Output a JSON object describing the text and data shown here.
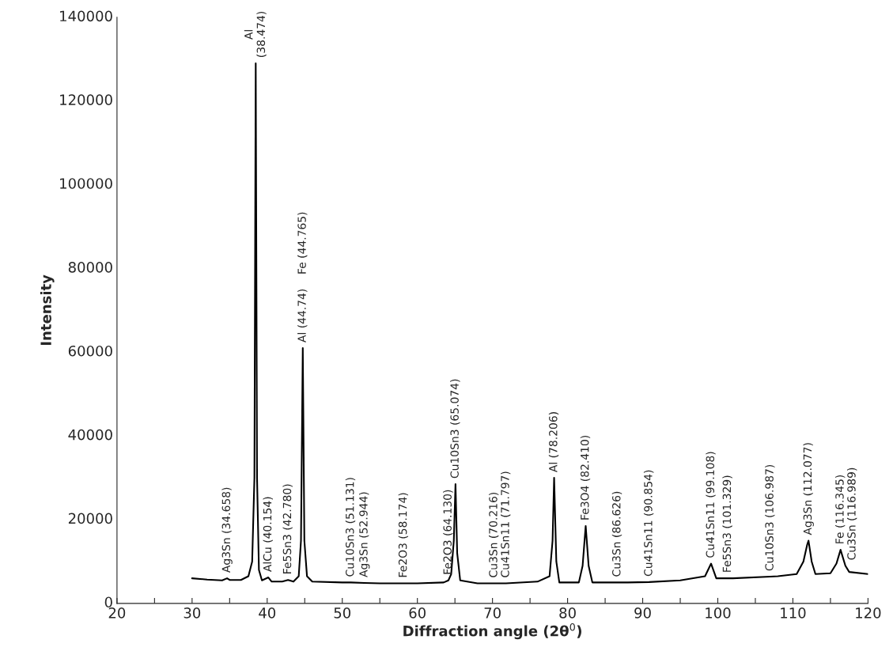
{
  "chart_data": {
    "type": "line",
    "xlabel": "Diffraction angle (2θ$^{0}$)",
    "ylabel": "Intensity",
    "xlim": [
      20,
      120
    ],
    "ylim": [
      0,
      140000
    ],
    "xticks": [
      20,
      {
        "value": 25,
        "label": null
      },
      30,
      {
        "value": 35,
        "label": null
      },
      40,
      {
        "value": 45,
        "label": null
      },
      50,
      {
        "value": 55,
        "label": null
      },
      60,
      {
        "value": 65,
        "label": null
      },
      70,
      {
        "value": 75,
        "label": null
      },
      80,
      {
        "value": 85,
        "label": null
      },
      90,
      {
        "value": 95,
        "label": null
      },
      100,
      {
        "value": 105,
        "label": null
      },
      110,
      {
        "value": 115,
        "label": null
      },
      120
    ],
    "yticks": [
      0,
      20000,
      40000,
      60000,
      80000,
      100000,
      120000,
      140000
    ],
    "series": [
      {
        "color": "#000000",
        "x": [
          30,
          32,
          34,
          34.658,
          35,
          36.5,
          37.5,
          38.0,
          38.3,
          38.474,
          38.65,
          38.9,
          39.3,
          40.154,
          40.6,
          42,
          42.78,
          43.5,
          44.2,
          44.5,
          44.74,
          44.95,
          45.3,
          46,
          50,
          51.131,
          52.944,
          55,
          58.174,
          60,
          63.5,
          64.13,
          64.5,
          64.85,
          65.074,
          65.3,
          65.7,
          68,
          70.216,
          71.797,
          76,
          77.6,
          78.0,
          78.206,
          78.5,
          78.9,
          81.5,
          82.0,
          82.41,
          82.8,
          83.3,
          86.626,
          88,
          90.854,
          95,
          98.3,
          99.108,
          99.8,
          101.329,
          102,
          106.987,
          108,
          110.5,
          111.4,
          111.9,
          112.077,
          112.5,
          113,
          115,
          115.8,
          116.345,
          116.989,
          117.5,
          120
        ],
        "values": [
          6000,
          5700,
          5500,
          6000,
          5600,
          5600,
          6500,
          10000,
          30000,
          129000,
          30000,
          8000,
          5500,
          6200,
          5200,
          5200,
          5600,
          5200,
          6500,
          15000,
          61000,
          15000,
          6500,
          5200,
          5000,
          5000,
          4900,
          4800,
          4800,
          4800,
          5000,
          5500,
          7000,
          15000,
          28500,
          12000,
          5500,
          4800,
          4800,
          4800,
          5200,
          6500,
          15000,
          30000,
          10000,
          5000,
          5000,
          9000,
          18500,
          9000,
          5000,
          5000,
          5000,
          5100,
          5500,
          6500,
          9500,
          6000,
          6000,
          6000,
          6400,
          6500,
          7000,
          10000,
          14000,
          15000,
          10000,
          7000,
          7200,
          9500,
          12800,
          9000,
          7500,
          7000
        ]
      }
    ],
    "annotations": [
      {
        "text": "Al\n(38.474)",
        "x": 38.474,
        "y": 129000
      },
      {
        "text": "Ag3Sn (34.658)",
        "x": 34.658,
        "y": 6000
      },
      {
        "text": "AlCu (40.154)",
        "x": 40.154,
        "y": 6200
      },
      {
        "text": "Fe5Sn3 (42.780)",
        "x": 42.78,
        "y": 5600
      },
      {
        "text": "Al (44.74)",
        "x": 44.74,
        "y": 61000
      },
      "Fe (44.765)",
      {
        "text": "Cu10Sn3 (51.131)",
        "x": 51.131,
        "y": 5000
      },
      {
        "text": "Ag3Sn (52.944)",
        "x": 52.944,
        "y": 4900
      },
      {
        "text": "Fe2O3 (58.174)",
        "x": 58.174,
        "y": 4800
      },
      {
        "text": "Fe2O3 (64.130)",
        "x": 64.13,
        "y": 5500
      },
      {
        "text": "Cu10Sn3 (65.074)",
        "x": 65.074,
        "y": 28500
      },
      {
        "text": "Cu3Sn (70.216)",
        "x": 70.216,
        "y": 4800
      },
      {
        "text": "Cu41Sn11 (71.797)",
        "x": 71.797,
        "y": 4800
      },
      {
        "text": "Al (78.206)",
        "x": 78.206,
        "y": 30000
      },
      {
        "text": "Fe3O4 (82.410)",
        "x": 82.41,
        "y": 18500
      },
      {
        "text": "Cu3Sn (86.626)",
        "x": 86.626,
        "y": 5000
      },
      {
        "text": "Cu41Sn11 (90.854)",
        "x": 90.854,
        "y": 5100
      },
      {
        "text": "Cu41Sn11 (99.108)",
        "x": 99.108,
        "y": 9500
      },
      {
        "text": "Fe5Sn3 (101.329)",
        "x": 101.329,
        "y": 6000
      },
      {
        "text": "Cu10Sn3 (106.987)",
        "x": 106.987,
        "y": 6400
      },
      {
        "text": "Ag3Sn (112.077)",
        "x": 112.077,
        "y": 15000
      },
      {
        "text": "Fe (116.345)",
        "x": 116.345,
        "y": 12800
      },
      {
        "text": "Cu3Sn (116.989)",
        "x": 116.989,
        "y": 9000
      }
    ]
  }
}
